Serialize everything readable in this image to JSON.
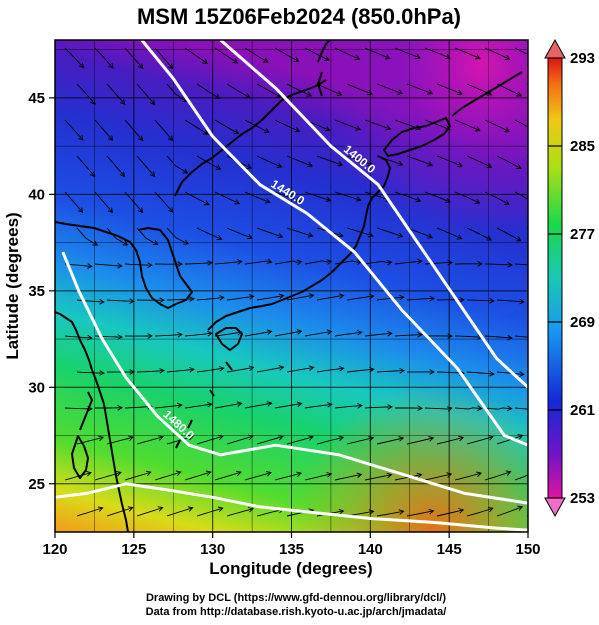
{
  "title": "MSM 15Z06Feb2024 (850.0hPa)",
  "xlabel": "Longitude (degrees)",
  "ylabel": "Latitude  (degrees)",
  "x_ticks": [
    "120",
    "125",
    "130",
    "135",
    "140",
    "145",
    "150"
  ],
  "y_ticks": [
    "45",
    "40",
    "35",
    "30",
    "25"
  ],
  "colorbar_ticks": [
    "293",
    "285",
    "277",
    "269",
    "261",
    "253"
  ],
  "contour_labels": [
    "1400.0",
    "1440.0",
    "1480.0"
  ],
  "credits": {
    "line1": "Drawing by DCL (https://www.gfd-dennou.org/library/dcl/)",
    "line2": "Data from http://database.rish.kyoto-u.ac.jp/arch/jmadata/"
  },
  "map": {
    "lon_range": [
      120,
      150
    ],
    "lat_range": [
      22.5,
      48
    ],
    "lon_ticks": [
      120,
      125,
      130,
      135,
      140,
      145,
      150
    ],
    "lat_ticks": [
      25,
      30,
      35,
      40,
      45
    ],
    "gridlines": true,
    "field": "temperature",
    "field_units": "K",
    "colorbar_range": [
      253,
      293
    ],
    "colorbar_tick_values": [
      293,
      285,
      277,
      269,
      261,
      253
    ],
    "contour_field": "geopotential height",
    "contours": [
      {
        "label": "1400.0",
        "lon": [
          130.5,
          134,
          137.5,
          140.5,
          143,
          145.5,
          148,
          150
        ],
        "lat": [
          48,
          45.5,
          42.5,
          40.5,
          37.5,
          34.5,
          31.5,
          30
        ]
      },
      {
        "label": "1440.0",
        "lon": [
          125.5,
          127.5,
          130,
          133,
          136,
          139,
          142,
          145.5,
          148.5,
          150
        ],
        "lat": [
          48,
          46,
          43,
          40.5,
          39,
          37,
          34,
          31,
          27.5,
          27
        ]
      },
      {
        "label": "1480.0",
        "lon": [
          120.5,
          121.5,
          123,
          124.5,
          126.5,
          128.5,
          130.5,
          134,
          138,
          142,
          146,
          150
        ],
        "lat": [
          37,
          35,
          32.5,
          30.5,
          28.5,
          27,
          26.5,
          27,
          26.5,
          25.5,
          24.5,
          24
        ]
      },
      {
        "label": "",
        "lon": [
          120,
          122,
          124.5,
          127,
          130,
          133,
          136.5,
          140,
          144,
          148,
          150
        ],
        "lat": [
          24.3,
          24.5,
          25,
          24.7,
          24.3,
          23.8,
          23.5,
          23.2,
          23,
          22.7,
          22.6
        ]
      }
    ],
    "colors": {
      "contour": "#ffffff",
      "coast": "#000000",
      "streamline": "#000000"
    }
  }
}
